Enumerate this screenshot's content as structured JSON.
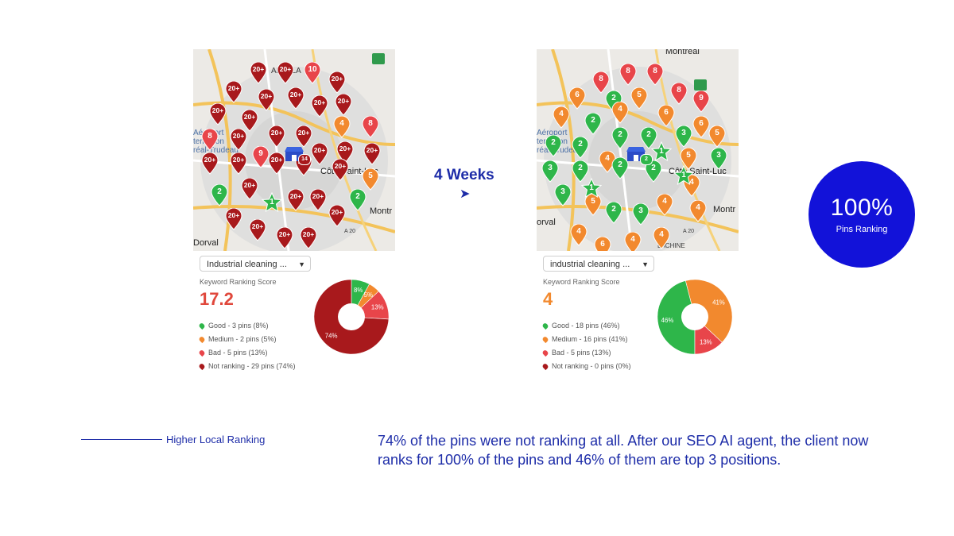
{
  "header": {
    "weeks_label": "4 Weeks",
    "arrow_glyph": "➤"
  },
  "colors": {
    "good": "#2eb64a",
    "medium": "#f2892e",
    "bad": "#e8454a",
    "not_ranking": "#a8191c",
    "accent": "#1212d9"
  },
  "before": {
    "dropdown_label": "Industrial cleaning ...",
    "score_label": "Keyword Ranking Score",
    "score": "17.2",
    "score_color": "#e0483c",
    "legend": [
      {
        "label": "Good - 3 pins (8%)",
        "color": "#2eb64a"
      },
      {
        "label": "Medium - 2 pins (5%)",
        "color": "#f2892e"
      },
      {
        "label": "Bad - 5 pins (13%)",
        "color": "#e8454a"
      },
      {
        "label": "Not ranking - 29 pins (74%)",
        "color": "#a8191c"
      }
    ],
    "chart_data": {
      "type": "pie",
      "categories": [
        "Good",
        "Medium",
        "Bad",
        "Not ranking"
      ],
      "values": [
        8,
        5,
        13,
        74
      ],
      "labels": [
        "8%",
        "5%",
        "13%",
        "74%"
      ],
      "colors": [
        "#2eb64a",
        "#f2892e",
        "#e8454a",
        "#a8191c"
      ]
    },
    "map": {
      "labels": [
        "AINT-LA",
        "Aéroport",
        "ternation",
        "réal-Trudeau",
        "A 5",
        "Côte Saint-Luc",
        "Montr",
        "Dorval",
        "A 20"
      ],
      "pins": [
        {
          "v": "20+",
          "c": "#a8191c"
        },
        {
          "v": "20+",
          "c": "#a8191c"
        },
        {
          "v": "10",
          "c": "#e8454a"
        },
        {
          "v": "20+",
          "c": "#a8191c"
        },
        {
          "v": "20+",
          "c": "#a8191c"
        },
        {
          "v": "20+",
          "c": "#a8191c"
        },
        {
          "v": "20+",
          "c": "#a8191c"
        },
        {
          "v": "20+",
          "c": "#a8191c"
        },
        {
          "v": "20+",
          "c": "#a8191c"
        },
        {
          "v": "20+",
          "c": "#a8191c"
        },
        {
          "v": "20+",
          "c": "#a8191c"
        },
        {
          "v": "4",
          "c": "#f2892e"
        },
        {
          "v": "8",
          "c": "#e8454a"
        },
        {
          "v": "8",
          "c": "#e8454a"
        },
        {
          "v": "20+",
          "c": "#a8191c"
        },
        {
          "v": "20+",
          "c": "#a8191c"
        },
        {
          "v": "20+",
          "c": "#a8191c"
        },
        {
          "v": "20+",
          "c": "#a8191c"
        },
        {
          "v": "20+",
          "c": "#a8191c"
        },
        {
          "v": "9",
          "c": "#e8454a"
        },
        {
          "v": "20+",
          "c": "#a8191c"
        },
        {
          "v": "20+",
          "c": "#a8191c"
        },
        {
          "v": "20+",
          "c": "#a8191c"
        },
        {
          "v": "20+",
          "c": "#a8191c"
        },
        {
          "v": "20+",
          "c": "#a8191c"
        },
        {
          "v": "20+",
          "c": "#a8191c"
        },
        {
          "v": "5",
          "c": "#f2892e"
        },
        {
          "v": "2",
          "c": "#2eb64a"
        },
        {
          "v": "20+",
          "c": "#a8191c"
        },
        {
          "v": "20+",
          "c": "#a8191c"
        },
        {
          "v": "20+",
          "c": "#a8191c"
        },
        {
          "v": "2",
          "c": "#2eb64a"
        },
        {
          "v": "20+",
          "c": "#a8191c"
        },
        {
          "v": "20+",
          "c": "#a8191c"
        },
        {
          "v": "20+",
          "c": "#a8191c"
        },
        {
          "v": "20+",
          "c": "#a8191c"
        },
        {
          "v": "20+",
          "c": "#a8191c"
        }
      ],
      "star_value": "1",
      "store_badge": "14"
    }
  },
  "after": {
    "dropdown_label": "industrial cleaning ...",
    "score_label": "Keyword Ranking Score",
    "score": "4",
    "score_color": "#f2892e",
    "legend": [
      {
        "label": "Good - 18 pins (46%)",
        "color": "#2eb64a"
      },
      {
        "label": "Medium - 16 pins (41%)",
        "color": "#f2892e"
      },
      {
        "label": "Bad - 5 pins (13%)",
        "color": "#e8454a"
      },
      {
        "label": "Not ranking - 0 pins (0%)",
        "color": "#a8191c"
      }
    ],
    "chart_data": {
      "type": "pie",
      "categories": [
        "Good",
        "Medium",
        "Bad",
        "Not ranking"
      ],
      "values": [
        46,
        41,
        13,
        0
      ],
      "labels": [
        "46%",
        "41%",
        "13%",
        ""
      ],
      "colors": [
        "#2eb64a",
        "#f2892e",
        "#e8454a",
        "#a8191c"
      ]
    },
    "map": {
      "labels": [
        "Montreal",
        "Aéroport",
        "ternation",
        "réal-Trudeau",
        "A 5",
        "Côte Saint-Luc",
        "Montr",
        "orval",
        "A 20",
        "LACHINE"
      ],
      "pins": [
        {
          "v": "8",
          "c": "#e8454a"
        },
        {
          "v": "8",
          "c": "#e8454a"
        },
        {
          "v": "8",
          "c": "#e8454a"
        },
        {
          "v": "6",
          "c": "#f2892e"
        },
        {
          "v": "2",
          "c": "#2eb64a"
        },
        {
          "v": "5",
          "c": "#f2892e"
        },
        {
          "v": "8",
          "c": "#e8454a"
        },
        {
          "v": "9",
          "c": "#e8454a"
        },
        {
          "v": "4",
          "c": "#f2892e"
        },
        {
          "v": "2",
          "c": "#2eb64a"
        },
        {
          "v": "4",
          "c": "#f2892e"
        },
        {
          "v": "6",
          "c": "#f2892e"
        },
        {
          "v": "6",
          "c": "#f2892e"
        },
        {
          "v": "2",
          "c": "#2eb64a"
        },
        {
          "v": "2",
          "c": "#2eb64a"
        },
        {
          "v": "3",
          "c": "#2eb64a"
        },
        {
          "v": "5",
          "c": "#f2892e"
        },
        {
          "v": "2",
          "c": "#2eb64a"
        },
        {
          "v": "2",
          "c": "#2eb64a"
        },
        {
          "v": "4",
          "c": "#f2892e"
        },
        {
          "v": "5",
          "c": "#f2892e"
        },
        {
          "v": "3",
          "c": "#2eb64a"
        },
        {
          "v": "3",
          "c": "#2eb64a"
        },
        {
          "v": "2",
          "c": "#2eb64a"
        },
        {
          "v": "2",
          "c": "#2eb64a"
        },
        {
          "v": "2",
          "c": "#2eb64a"
        },
        {
          "v": "4",
          "c": "#f2892e"
        },
        {
          "v": "3",
          "c": "#2eb64a"
        },
        {
          "v": "5",
          "c": "#f2892e"
        },
        {
          "v": "2",
          "c": "#2eb64a"
        },
        {
          "v": "3",
          "c": "#2eb64a"
        },
        {
          "v": "4",
          "c": "#f2892e"
        },
        {
          "v": "4",
          "c": "#f2892e"
        },
        {
          "v": "4",
          "c": "#f2892e"
        },
        {
          "v": "6",
          "c": "#f2892e"
        },
        {
          "v": "4",
          "c": "#f2892e"
        },
        {
          "v": "4",
          "c": "#f2892e"
        }
      ],
      "stars": [
        "1",
        "1",
        "1"
      ],
      "store_badge": "2"
    }
  },
  "badge": {
    "value": "100%",
    "label": "Pins Ranking"
  },
  "footer": {
    "rule_label": "Higher Local Ranking",
    "description": "74% of the pins were not ranking at all. After our SEO AI agent, the client now ranks for 100% of the pins and 46% of them are top 3 positions."
  }
}
